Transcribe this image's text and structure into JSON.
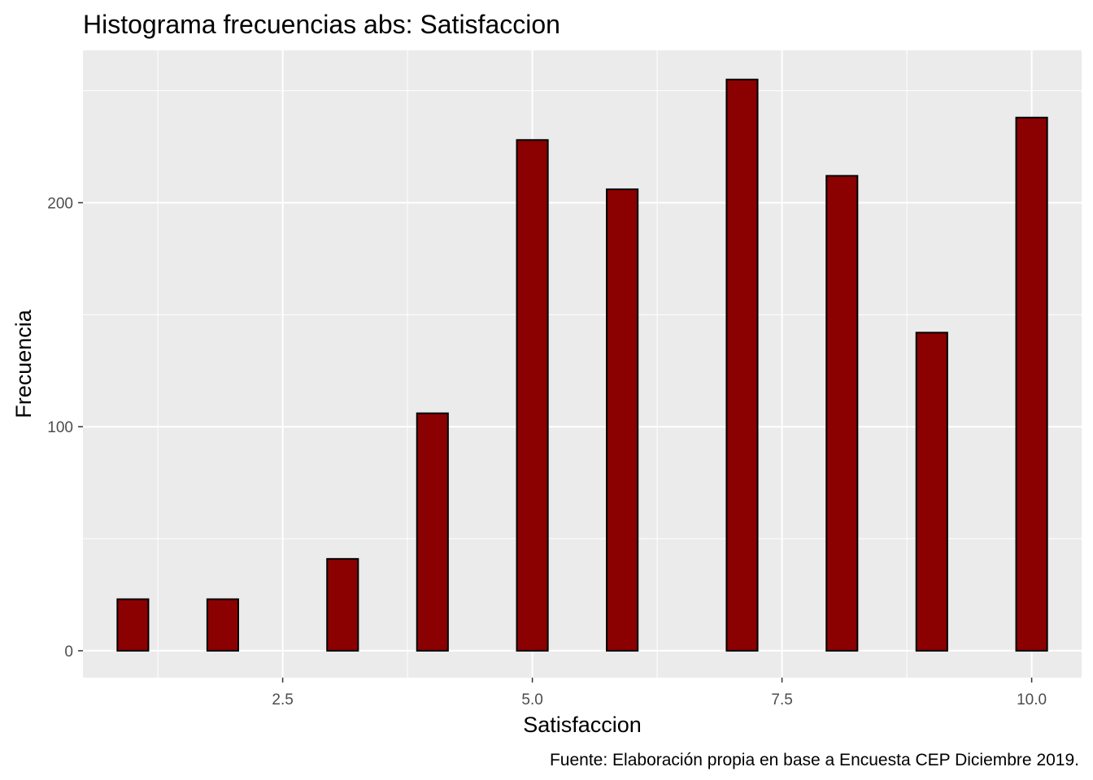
{
  "chart_data": {
    "type": "bar",
    "title": "Histograma frecuencias abs: Satisfaccion",
    "xlabel": "Satisfaccion",
    "ylabel": "Frecuencia",
    "caption": "Fuente: Elaboración propia en base a Encuesta CEP Diciembre 2019.",
    "x_ticks": [
      "2.5",
      "5.0",
      "7.5",
      "10.0"
    ],
    "y_ticks": [
      "0",
      "100",
      "200"
    ],
    "xlim": [
      0.5,
      10.5
    ],
    "ylim": [
      -12,
      268
    ],
    "grid": true,
    "bin_width": 0.3103,
    "bars": [
      {
        "x": 1.0,
        "value": 23
      },
      {
        "x": 1.9,
        "value": 23
      },
      {
        "x": 2.2,
        "value": 0
      },
      {
        "x": 2.5,
        "value": 0
      },
      {
        "x": 2.8,
        "value": 0
      },
      {
        "x": 3.1,
        "value": 41
      },
      {
        "x": 4.0,
        "value": 106
      },
      {
        "x": 5.0,
        "value": 228
      },
      {
        "x": 5.9,
        "value": 206
      },
      {
        "x": 6.2,
        "value": 0
      },
      {
        "x": 6.5,
        "value": 0
      },
      {
        "x": 6.8,
        "value": 0
      },
      {
        "x": 7.1,
        "value": 255
      },
      {
        "x": 8.1,
        "value": 212
      },
      {
        "x": 8.4,
        "value": 0
      },
      {
        "x": 8.7,
        "value": 0
      },
      {
        "x": 9.0,
        "value": 142
      },
      {
        "x": 10.0,
        "value": 238
      }
    ],
    "colors": {
      "bar_fill": "#8B0000",
      "bar_stroke": "#000000",
      "panel": "#EBEBEB",
      "grid": "#FFFFFF"
    }
  }
}
